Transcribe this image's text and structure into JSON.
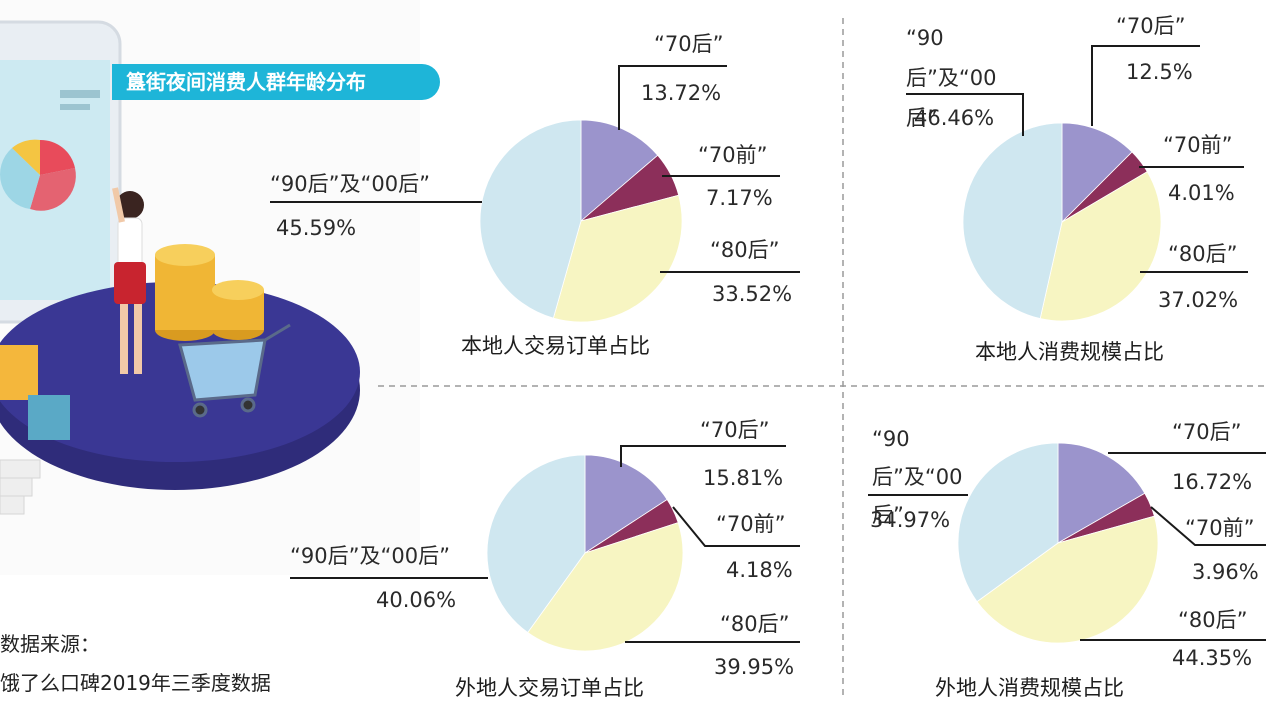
{
  "title": "簋街夜间消费人群年龄分布",
  "source": {
    "heading": "数据来源：",
    "text": "饿了么口碑2019年三季度数据"
  },
  "colors": {
    "70后": "#9b94cc",
    "70前": "#8c2f5a",
    "80后": "#f7f5c2",
    "90后及00后": "#cfe7f0",
    "badge": "#1eb5d8"
  },
  "chart_data": [
    {
      "type": "pie",
      "title": "本地人交易订单占比",
      "slices": [
        {
          "name": "“70后”",
          "value": 13.72,
          "label": "13.72%"
        },
        {
          "name": "“70前”",
          "value": 7.17,
          "label": "7.17%"
        },
        {
          "name": "“80后”",
          "value": 33.52,
          "label": "33.52%"
        },
        {
          "name": "“90后”及“00后”",
          "value": 45.59,
          "label": "45.59%"
        }
      ]
    },
    {
      "type": "pie",
      "title": "本地人消费规模占比",
      "slices": [
        {
          "name": "“70后”",
          "value": 12.5,
          "label": "12.5%"
        },
        {
          "name": "“70前”",
          "value": 4.01,
          "label": "4.01%"
        },
        {
          "name": "“80后”",
          "value": 37.02,
          "label": "37.02%"
        },
        {
          "name": "“90后”及“00后”",
          "value": 46.46,
          "label": "46.46%"
        }
      ]
    },
    {
      "type": "pie",
      "title": "外地人交易订单占比",
      "slices": [
        {
          "name": "“70后”",
          "value": 15.81,
          "label": "15.81%"
        },
        {
          "name": "“70前”",
          "value": 4.18,
          "label": "4.18%"
        },
        {
          "name": "“80后”",
          "value": 39.95,
          "label": "39.95%"
        },
        {
          "name": "“90后”及“00后”",
          "value": 40.06,
          "label": "40.06%"
        }
      ]
    },
    {
      "type": "pie",
      "title": "外地人消费规模占比",
      "slices": [
        {
          "name": "“70后”",
          "value": 16.72,
          "label": "16.72%"
        },
        {
          "name": "“70前”",
          "value": 3.96,
          "label": "3.96%"
        },
        {
          "name": "“80后”",
          "value": 44.35,
          "label": "44.35%"
        },
        {
          "name": "“90后”及“00后”",
          "value": 34.97,
          "label": "34.97%"
        }
      ]
    }
  ]
}
